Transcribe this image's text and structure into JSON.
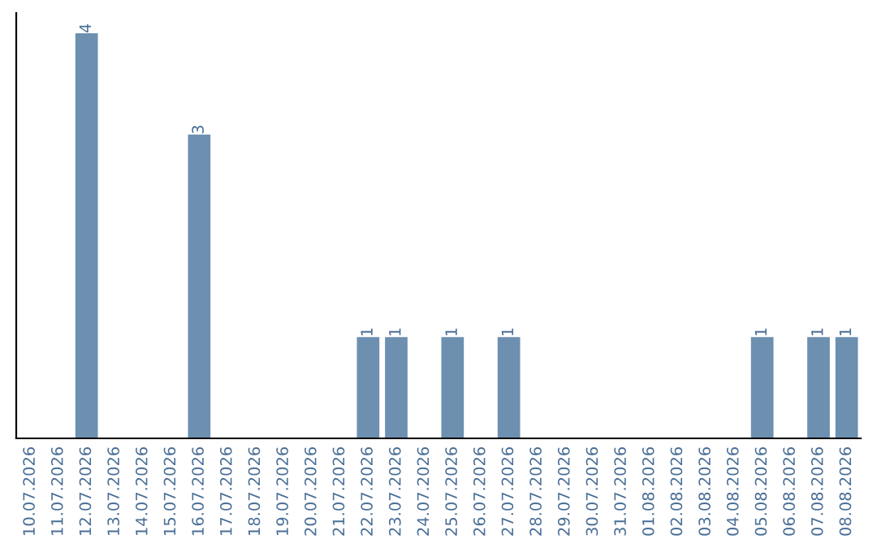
{
  "chart_data": {
    "type": "bar",
    "categories": [
      "10.07.2026",
      "11.07.2026",
      "12.07.2026",
      "13.07.2026",
      "14.07.2026",
      "15.07.2026",
      "16.07.2026",
      "17.07.2026",
      "18.07.2026",
      "19.07.2026",
      "20.07.2026",
      "21.07.2026",
      "22.07.2026",
      "23.07.2026",
      "24.07.2026",
      "25.07.2026",
      "26.07.2026",
      "27.07.2026",
      "28.07.2026",
      "29.07.2026",
      "30.07.2026",
      "31.07.2026",
      "01.08.2026",
      "02.08.2026",
      "03.08.2026",
      "04.08.2026",
      "05.08.2026",
      "06.08.2026",
      "07.08.2026",
      "08.08.2026"
    ],
    "values": [
      0,
      0,
      4,
      0,
      0,
      0,
      3,
      0,
      0,
      0,
      0,
      0,
      1,
      1,
      0,
      1,
      0,
      1,
      0,
      0,
      0,
      0,
      0,
      0,
      0,
      0,
      1,
      0,
      1,
      1
    ],
    "value_labels": [
      null,
      null,
      "4",
      null,
      null,
      null,
      "3",
      null,
      null,
      null,
      null,
      null,
      "1",
      "1",
      null,
      "1",
      null,
      "1",
      null,
      null,
      null,
      null,
      null,
      null,
      null,
      null,
      "1",
      null,
      "1",
      "1"
    ],
    "color": "#6d8fb0",
    "tick_labels": "x",
    "grid": false,
    "legend": false
  }
}
